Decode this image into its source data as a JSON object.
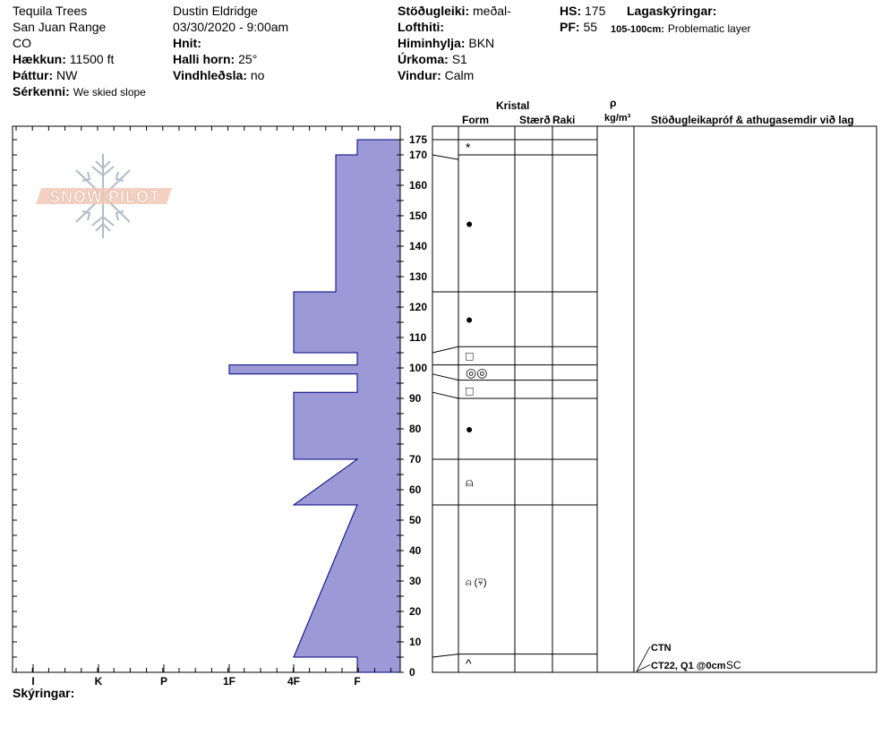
{
  "header": {
    "location": "Tequila Trees",
    "range": "San Juan Range",
    "state": "CO",
    "elevation_label": "Hækkun:",
    "elevation_value": "11500 ft",
    "aspect_label": "Þáttur:",
    "aspect_value": "NW",
    "features_label": "Sérkenni:",
    "features_value": "We skied slope",
    "observer": "Dustin Eldridge",
    "datetime": "03/30/2020 - 9:00am",
    "coords_label": "Hnit:",
    "coords_value": "",
    "slope_label": "Halli horn:",
    "slope_value": "25°",
    "wind_loading_label": "Vindhleðsla:",
    "wind_loading_value": "no",
    "stability_label": "Stöðugleiki:",
    "stability_value": "meðal-",
    "air_temp_label": "Lofthiti:",
    "air_temp_value": "",
    "sky_label": "Himinhylja:",
    "sky_value": "BKN",
    "precip_label": "Úrkoma:",
    "precip_value": "S1",
    "wind_label": "Vindur:",
    "wind_value": "Calm",
    "hs_label": "HS:",
    "hs_value": "175",
    "pf_label": "PF:",
    "pf_value": "55",
    "legend_label": "Lagaskýringar:",
    "legend_range": "105-100cm:",
    "legend_text": "Problematic layer"
  },
  "columns": {
    "crystal": "Kristal",
    "form": "Form",
    "size": "Stærð",
    "moisture": "Raki",
    "rho": "ρ",
    "density_unit": "kg/m³",
    "tests_header": "Stöðugleikapróf & athugasemdir við lag"
  },
  "logo_text": "SNOW PILOT",
  "footer_label": "Skýringar:",
  "chart_data": {
    "type": "snow-profile",
    "hardness_scale": [
      "I",
      "K",
      "P",
      "1F",
      "4F",
      "F"
    ],
    "depth_ticks": [
      175,
      170,
      160,
      150,
      140,
      130,
      120,
      110,
      100,
      90,
      80,
      70,
      60,
      50,
      40,
      30,
      20,
      10,
      0
    ],
    "ylim": [
      0,
      175
    ],
    "hardness_profile": [
      {
        "depth": 175,
        "hardness": "F"
      },
      {
        "depth": 170,
        "hardness": "F"
      },
      {
        "depth": 170,
        "hardness": "F-/4F+"
      },
      {
        "depth": 125,
        "hardness": "F-/4F+"
      },
      {
        "depth": 125,
        "hardness": "4F"
      },
      {
        "depth": 105,
        "hardness": "4F"
      },
      {
        "depth": 105,
        "hardness": "F"
      },
      {
        "depth": 101,
        "hardness": "F"
      },
      {
        "depth": 101,
        "hardness": "1F"
      },
      {
        "depth": 98,
        "hardness": "1F"
      },
      {
        "depth": 98,
        "hardness": "F"
      },
      {
        "depth": 92,
        "hardness": "F"
      },
      {
        "depth": 92,
        "hardness": "4F"
      },
      {
        "depth": 70,
        "hardness": "4F"
      },
      {
        "depth": 70,
        "hardness": "F"
      },
      {
        "depth": 55,
        "hardness": "4F"
      },
      {
        "depth": 55,
        "hardness": "F"
      },
      {
        "depth": 5,
        "hardness": "4F"
      },
      {
        "depth": 5,
        "hardness": "F"
      },
      {
        "depth": 0,
        "hardness": "F"
      }
    ],
    "layer_boundaries": [
      175,
      170,
      125,
      107,
      101,
      96,
      90,
      70,
      55,
      6,
      0
    ],
    "grain_forms": [
      {
        "depth": 172.5,
        "symbol": "*"
      },
      {
        "depth": 147.5,
        "symbol": "●"
      },
      {
        "depth": 116,
        "symbol": "●"
      },
      {
        "depth": 104,
        "symbol": "□"
      },
      {
        "depth": 98.5,
        "symbol": "◎◎"
      },
      {
        "depth": 92.5,
        "symbol": "□"
      },
      {
        "depth": 80,
        "symbol": "●"
      },
      {
        "depth": 62.5,
        "symbol": "⍝"
      },
      {
        "depth": 30,
        "symbol": "⍝ (⍫)"
      },
      {
        "depth": 3,
        "symbol": "^"
      }
    ],
    "tests": [
      {
        "depth": 6,
        "text": "CTN"
      },
      {
        "depth": 0,
        "text": "CT22, Q1 @0cm",
        "extra": "SC"
      }
    ]
  }
}
